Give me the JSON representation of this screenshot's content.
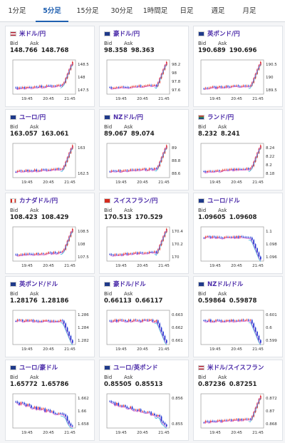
{
  "tabs": [
    {
      "label": "1分足",
      "active": false
    },
    {
      "label": "5分足",
      "active": true
    },
    {
      "label": "15分足",
      "active": false
    },
    {
      "label": "30分足",
      "active": false
    },
    {
      "label": "1時間足",
      "active": false
    },
    {
      "label": "日足",
      "active": false
    },
    {
      "label": "週足",
      "active": false
    },
    {
      "label": "月足",
      "active": false
    }
  ],
  "labels": {
    "bid": "Bid",
    "ask": "Ask"
  },
  "colors": {
    "up": "#e0251b",
    "down": "#1a2fd0",
    "ma1": "#cc55cc",
    "ma2": "#22aadd",
    "pair_text": "#4a2aa8",
    "tab_active": "#1f5fb0"
  },
  "cards": [
    {
      "pair": "米ドル/円",
      "flag": "us",
      "bid": "148.766",
      "ask": "148.768",
      "x_ticks": [
        "19:45",
        "20:45",
        "21:45"
      ],
      "y_ticks": [
        "148.5",
        "148",
        "147.5"
      ],
      "trend": "spike_up"
    },
    {
      "pair": "豪ドル/円",
      "flag": "au",
      "bid": "98.358",
      "ask": "98.363",
      "x_ticks": [
        "19:45",
        "20:45",
        "21:45"
      ],
      "y_ticks": [
        "98.2",
        "98",
        "97.8",
        "97.6"
      ],
      "trend": "spike_up"
    },
    {
      "pair": "英ポンド/円",
      "flag": "gb",
      "bid": "190.689",
      "ask": "190.696",
      "x_ticks": [
        "19:45",
        "20:45",
        "21:45"
      ],
      "y_ticks": [
        "190.5",
        "190",
        "189.5"
      ],
      "trend": "spike_up"
    },
    {
      "pair": "ユーロ/円",
      "flag": "eu",
      "bid": "163.057",
      "ask": "163.061",
      "x_ticks": [
        "19:45",
        "20:45",
        "21:45"
      ],
      "y_ticks": [
        "163",
        "162.5"
      ],
      "trend": "spike_up"
    },
    {
      "pair": "NZドル/円",
      "flag": "nz",
      "bid": "89.067",
      "ask": "89.074",
      "x_ticks": [
        "19:45",
        "20:45",
        "21:45"
      ],
      "y_ticks": [
        "89",
        "88.8",
        "88.6"
      ],
      "trend": "spike_up"
    },
    {
      "pair": "ランド/円",
      "flag": "za",
      "bid": "8.232",
      "ask": "8.241",
      "x_ticks": [
        "19:45",
        "20:45",
        "21:45"
      ],
      "y_ticks": [
        "8.24",
        "8.22",
        "8.2",
        "8.18"
      ],
      "trend": "spike_up"
    },
    {
      "pair": "カナダドル/円",
      "flag": "ca",
      "bid": "108.423",
      "ask": "108.429",
      "x_ticks": [
        "19:45",
        "20:45",
        "21:45"
      ],
      "y_ticks": [
        "108.5",
        "108",
        "107.5"
      ],
      "trend": "spike_up"
    },
    {
      "pair": "スイスフラン/円",
      "flag": "ch",
      "bid": "170.513",
      "ask": "170.529",
      "x_ticks": [
        "19:45",
        "20:45",
        "21:45"
      ],
      "y_ticks": [
        "170.4",
        "170.2",
        "170"
      ],
      "trend": "spike_up"
    },
    {
      "pair": "ユーロ/ドル",
      "flag": "eu",
      "bid": "1.09605",
      "ask": "1.09608",
      "x_ticks": [
        "19:45",
        "20:45",
        "21:45"
      ],
      "y_ticks": [
        "1.1",
        "1.098",
        "1.096"
      ],
      "trend": "drop"
    },
    {
      "pair": "英ポンド/ドル",
      "flag": "gb",
      "bid": "1.28176",
      "ask": "1.28186",
      "x_ticks": [
        "19:45",
        "20:45",
        "21:45"
      ],
      "y_ticks": [
        "1.286",
        "1.284",
        "1.282"
      ],
      "trend": "drop"
    },
    {
      "pair": "豪ドル/ドル",
      "flag": "au",
      "bid": "0.66113",
      "ask": "0.66117",
      "x_ticks": [
        "19:45",
        "20:45",
        "21:45"
      ],
      "y_ticks": [
        "0.663",
        "0.662",
        "0.661"
      ],
      "trend": "drop"
    },
    {
      "pair": "NZドル/ドル",
      "flag": "nz",
      "bid": "0.59864",
      "ask": "0.59878",
      "x_ticks": [
        "19:45",
        "20:45",
        "21:45"
      ],
      "y_ticks": [
        "0.601",
        "0.6",
        "0.599"
      ],
      "trend": "drop"
    },
    {
      "pair": "ユーロ/豪ドル",
      "flag": "eu",
      "bid": "1.65772",
      "ask": "1.65786",
      "x_ticks": [
        "19:45",
        "20:45",
        "21:45"
      ],
      "y_ticks": [
        "1.662",
        "1.66",
        "1.658"
      ],
      "trend": "decline"
    },
    {
      "pair": "ユーロ/英ポンド",
      "flag": "eu",
      "bid": "0.85505",
      "ask": "0.85513",
      "x_ticks": [
        "19:45",
        "20:45",
        "21:45"
      ],
      "y_ticks": [
        "0.856",
        "0.855"
      ],
      "trend": "decline"
    },
    {
      "pair": "米ドル/スイスフラン",
      "flag": "us",
      "bid": "0.87236",
      "ask": "0.87251",
      "x_ticks": [
        "19:45",
        "20:45",
        "21:45"
      ],
      "y_ticks": [
        "0.872",
        "0.87",
        "0.868"
      ],
      "trend": "spike_up"
    }
  ]
}
